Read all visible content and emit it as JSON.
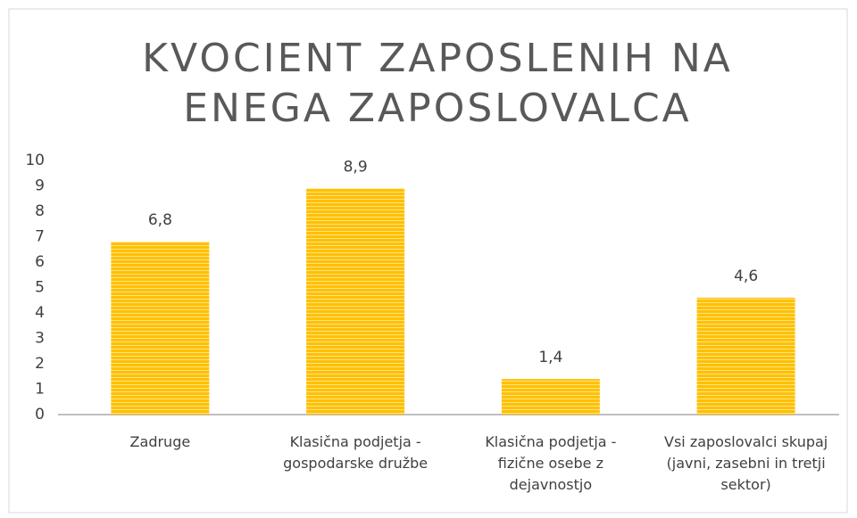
{
  "chart_data": {
    "type": "bar",
    "title": "KVOCIENT ZAPOSLENIH NA ENEGA ZAPOSLOVALCA",
    "categories": [
      "Zadruge",
      "Klasična podjetja - gospodarske družbe",
      "Klasična podjetja - fizične osebe z dejavnostjo",
      "Vsi zaposlovalci skupaj (javni, zasebni in tretji sektor)"
    ],
    "values": [
      6.8,
      8.9,
      1.4,
      4.6
    ],
    "value_labels": [
      "6,8",
      "8,9",
      "1,4",
      "4,6"
    ],
    "color": "#ffc000",
    "ylim": [
      0,
      10
    ],
    "yticks": [
      0,
      1,
      2,
      3,
      4,
      5,
      6,
      7,
      8,
      9,
      10
    ],
    "grid": false
  }
}
